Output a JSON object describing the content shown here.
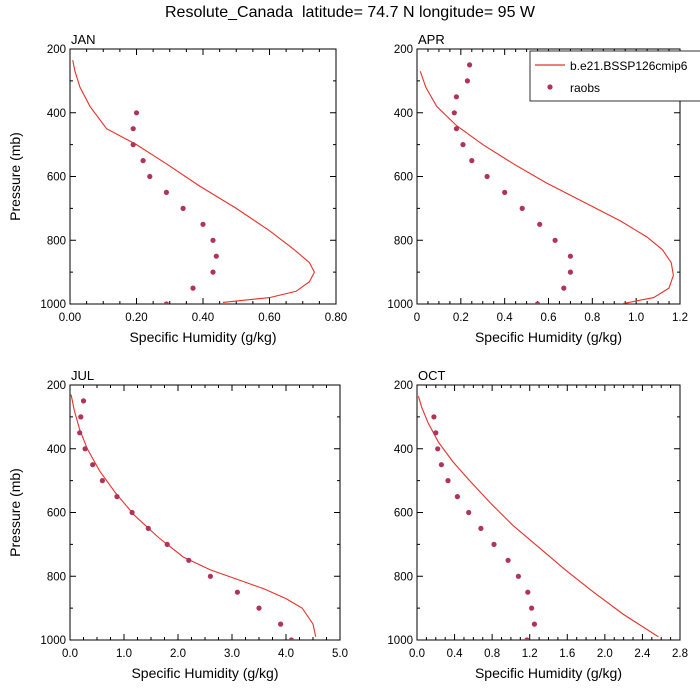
{
  "title": "Resolute_Canada  latitude= 74.7 N longitude= 95 W",
  "legend": {
    "model_label": "b.e21.BSSP126cmip6",
    "obs_label": "raobs",
    "model_color": "#e8302a",
    "obs_color": "#b2325a"
  },
  "chart_data": [
    {
      "type": "line",
      "panel": "JAN",
      "xlabel": "Specific Humidity (g/kg)",
      "ylabel": "Pressure (mb)",
      "xlim": [
        0,
        0.8
      ],
      "ylim": [
        1000,
        200
      ],
      "xticks": [
        "0.00",
        "0.20",
        "0.40",
        "0.60",
        "0.80"
      ],
      "yticks": [
        "200",
        "400",
        "600",
        "800",
        "1000"
      ],
      "series": [
        {
          "name": "b.e21.BSSP126cmip6",
          "kind": "line",
          "x": [
            0.46,
            0.6,
            0.68,
            0.72,
            0.735,
            0.72,
            0.675,
            0.6,
            0.5,
            0.39,
            0.29,
            0.2,
            0.11,
            0.06,
            0.03,
            0.015,
            0.008
          ],
          "y": [
            995,
            980,
            960,
            930,
            900,
            870,
            830,
            770,
            700,
            630,
            560,
            500,
            450,
            380,
            320,
            270,
            235
          ]
        },
        {
          "name": "raobs",
          "kind": "points",
          "x": [
            0.29,
            0.37,
            0.43,
            0.44,
            0.43,
            0.4,
            0.34,
            0.29,
            0.24,
            0.22,
            0.19,
            0.19,
            0.2
          ],
          "y": [
            1000,
            950,
            900,
            850,
            800,
            750,
            700,
            650,
            600,
            550,
            500,
            450,
            400
          ]
        }
      ]
    },
    {
      "type": "line",
      "panel": "APR",
      "xlabel": "Specific Humidity (g/kg)",
      "ylabel": "",
      "xlim": [
        0,
        1.2
      ],
      "ylim": [
        1000,
        200
      ],
      "xticks": [
        "0",
        "0.2",
        "0.4",
        "0.6",
        "0.8",
        "1.0",
        "1.2"
      ],
      "yticks": [
        "200",
        "400",
        "600",
        "800",
        "1000"
      ],
      "series": [
        {
          "name": "b.e21.BSSP126cmip6",
          "kind": "line",
          "x": [
            0.93,
            1.08,
            1.15,
            1.17,
            1.16,
            1.12,
            1.05,
            0.93,
            0.76,
            0.59,
            0.44,
            0.3,
            0.18,
            0.09,
            0.04,
            0.015
          ],
          "y": [
            1000,
            980,
            950,
            910,
            870,
            830,
            790,
            740,
            680,
            620,
            560,
            500,
            440,
            380,
            320,
            270
          ]
        },
        {
          "name": "raobs",
          "kind": "points",
          "x": [
            0.55,
            0.67,
            0.7,
            0.7,
            0.63,
            0.56,
            0.48,
            0.4,
            0.32,
            0.25,
            0.21,
            0.18,
            0.17,
            0.18,
            0.23,
            0.24
          ],
          "y": [
            1000,
            950,
            900,
            850,
            800,
            750,
            700,
            650,
            600,
            550,
            500,
            450,
            400,
            350,
            300,
            250
          ]
        }
      ]
    },
    {
      "type": "line",
      "panel": "JUL",
      "xlabel": "Specific Humidity (g/kg)",
      "ylabel": "Pressure (mb)",
      "xlim": [
        0,
        5.0
      ],
      "ylim": [
        1000,
        200
      ],
      "xticks": [
        "0.0",
        "1.0",
        "2.0",
        "3.0",
        "4.0",
        "5.0"
      ],
      "yticks": [
        "200",
        "400",
        "600",
        "800",
        "1000"
      ],
      "series": [
        {
          "name": "b.e21.BSSP126cmip6",
          "kind": "line",
          "x": [
            4.55,
            4.5,
            4.3,
            4.0,
            3.6,
            3.1,
            2.6,
            2.1,
            1.65,
            1.2,
            0.85,
            0.55,
            0.32,
            0.18,
            0.08,
            0.02
          ],
          "y": [
            990,
            950,
            900,
            870,
            840,
            810,
            780,
            740,
            680,
            610,
            540,
            470,
            400,
            340,
            280,
            230
          ]
        },
        {
          "name": "raobs",
          "kind": "points",
          "x": [
            4.1,
            3.9,
            3.5,
            3.1,
            2.6,
            2.2,
            1.8,
            1.45,
            1.15,
            0.87,
            0.6,
            0.42,
            0.28,
            0.18,
            0.2,
            0.25
          ],
          "y": [
            1000,
            950,
            900,
            850,
            800,
            750,
            700,
            650,
            600,
            550,
            500,
            450,
            400,
            350,
            300,
            250
          ]
        }
      ]
    },
    {
      "type": "line",
      "panel": "OCT",
      "xlabel": "Specific Humidity (g/kg)",
      "ylabel": "",
      "xlim": [
        0,
        2.8
      ],
      "ylim": [
        1000,
        200
      ],
      "xticks": [
        "0.0",
        "0.4",
        "0.8",
        "1.2",
        "1.6",
        "2.0",
        "2.4",
        "2.8"
      ],
      "yticks": [
        "200",
        "400",
        "600",
        "800",
        "1000"
      ],
      "series": [
        {
          "name": "b.e21.BSSP126cmip6",
          "kind": "line",
          "x": [
            2.57,
            2.2,
            1.88,
            1.58,
            1.3,
            1.02,
            0.78,
            0.56,
            0.38,
            0.23,
            0.12,
            0.05,
            0.015
          ],
          "y": [
            990,
            920,
            850,
            780,
            710,
            640,
            570,
            500,
            440,
            380,
            320,
            270,
            235
          ]
        },
        {
          "name": "raobs",
          "kind": "points",
          "x": [
            1.17,
            1.25,
            1.22,
            1.18,
            1.08,
            0.97,
            0.82,
            0.68,
            0.55,
            0.43,
            0.33,
            0.26,
            0.22,
            0.2,
            0.18
          ],
          "y": [
            1000,
            950,
            900,
            850,
            800,
            750,
            700,
            650,
            600,
            550,
            500,
            450,
            400,
            350,
            300
          ]
        }
      ]
    }
  ]
}
